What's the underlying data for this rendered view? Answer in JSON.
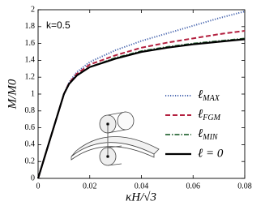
{
  "chart_data": {
    "type": "line",
    "annotation": "k=0.5",
    "xlabel": "κH/√3",
    "ylabel": "M/M0",
    "x": [
      0,
      0.005,
      0.01,
      0.012,
      0.015,
      0.02,
      0.03,
      0.04,
      0.05,
      0.06,
      0.07,
      0.08
    ],
    "series": [
      {
        "name": "ℓMAX",
        "color": "#4a68b0",
        "dash": "dotted",
        "values": [
          0,
          0.5,
          1.0,
          1.14,
          1.26,
          1.38,
          1.52,
          1.63,
          1.72,
          1.81,
          1.9,
          1.98
        ]
      },
      {
        "name": "ℓFGM",
        "color": "#b3203f",
        "dash": "dashed",
        "values": [
          0,
          0.5,
          1.0,
          1.13,
          1.24,
          1.35,
          1.46,
          1.55,
          1.61,
          1.66,
          1.71,
          1.75
        ]
      },
      {
        "name": "ℓMIN",
        "color": "#2d6a3a",
        "dash": "dashdot",
        "values": [
          0,
          0.5,
          1.0,
          1.12,
          1.22,
          1.32,
          1.43,
          1.51,
          1.56,
          1.6,
          1.63,
          1.66
        ]
      },
      {
        "name": "ℓ = 0",
        "color": "#000000",
        "dash": "solid",
        "values": [
          0,
          0.5,
          1.0,
          1.12,
          1.22,
          1.32,
          1.42,
          1.5,
          1.55,
          1.59,
          1.62,
          1.65
        ]
      }
    ],
    "xlim": [
      0,
      0.08
    ],
    "xticks": [
      0,
      0.02,
      0.04,
      0.06,
      0.08
    ],
    "ylim": [
      0,
      2
    ],
    "yticks": [
      0,
      0.2,
      0.4,
      0.6,
      0.8,
      1,
      1.2,
      1.4,
      1.6,
      1.8,
      2
    ],
    "legend": "lower right",
    "grid": false
  }
}
